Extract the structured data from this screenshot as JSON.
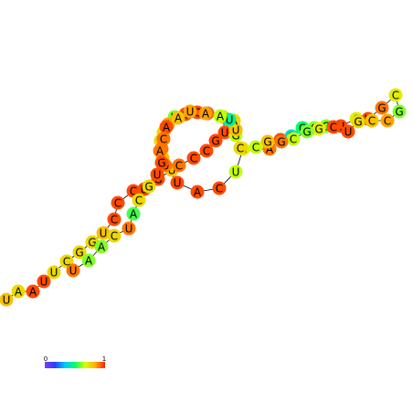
{
  "structure": {
    "nucleotides": [
      {
        "base": "U",
        "score": 0.8
      },
      {
        "base": "A",
        "score": 0.75
      },
      {
        "base": "A",
        "score": 0.95
      },
      {
        "base": "U",
        "score": 0.95
      },
      {
        "base": "U",
        "score": 0.75
      },
      {
        "base": "C",
        "score": 0.75
      },
      {
        "base": "G",
        "score": 0.75
      },
      {
        "base": "G",
        "score": 0.75
      },
      {
        "base": "U",
        "score": 0.8
      },
      {
        "base": "C",
        "score": 0.95
      },
      {
        "base": "C",
        "score": 0.95
      },
      {
        "base": "C",
        "score": 0.95
      },
      {
        "base": "U",
        "score": 0.95
      },
      {
        "base": "G",
        "score": 0.95
      },
      {
        "base": "U",
        "score": 0.8
      },
      {
        "base": "C",
        "score": 0.9
      },
      {
        "base": "C",
        "score": 0.95
      },
      {
        "base": "C",
        "score": 0.95
      },
      {
        "base": "G",
        "score": 0.95
      },
      {
        "base": "U",
        "score": 0.95
      },
      {
        "base": "U",
        "score": 0.8
      },
      {
        "base": "G",
        "score": 0.95
      },
      {
        "base": "C",
        "score": 0.95
      },
      {
        "base": "G",
        "score": 0.95
      },
      {
        "base": "U",
        "score": 0.6
      },
      {
        "base": "A",
        "score": 0.85
      },
      {
        "base": "A",
        "score": 0.75
      },
      {
        "base": "A",
        "score": 0.75
      },
      {
        "base": "G",
        "score": 0.9
      },
      {
        "base": "A",
        "score": 0.8
      },
      {
        "base": "U",
        "score": 0.9
      },
      {
        "base": "U",
        "score": 0.95
      },
      {
        "base": "A",
        "score": 0.95
      },
      {
        "base": "C",
        "score": 0.95
      },
      {
        "base": "U",
        "score": 0.65
      },
      {
        "base": "G",
        "score": 0.7
      },
      {
        "base": "A",
        "score": 0.9
      },
      {
        "base": "U",
        "score": 0.95
      },
      {
        "base": "G",
        "score": 0.4
      },
      {
        "base": "C",
        "score": 0.5
      },
      {
        "base": "C",
        "score": 0.6
      },
      {
        "base": "G",
        "score": 0.6
      },
      {
        "base": "U",
        "score": 0.95
      },
      {
        "base": "C",
        "score": 0.7
      },
      {
        "base": "U",
        "score": 0.95
      },
      {
        "base": "G",
        "score": 0.9
      },
      {
        "base": "C",
        "score": 0.7
      },
      {
        "base": "G",
        "score": 0.6
      },
      {
        "base": "C",
        "score": 0.85
      },
      {
        "base": "C",
        "score": 0.8
      },
      {
        "base": "G",
        "score": 0.75
      },
      {
        "base": "U",
        "score": 0.95
      },
      {
        "base": "C",
        "score": 0.95
      },
      {
        "base": "G",
        "score": 0.7
      },
      {
        "base": "G",
        "score": 0.6
      },
      {
        "base": "C",
        "score": 0.65
      },
      {
        "base": "G",
        "score": 0.9
      },
      {
        "base": "G",
        "score": 0.8
      },
      {
        "base": "C",
        "score": 0.65
      },
      {
        "base": "C",
        "score": 0.75
      },
      {
        "base": "G",
        "score": 0.65
      },
      {
        "base": "U",
        "score": 0.8
      },
      {
        "base": "A",
        "score": 0.75
      },
      {
        "base": "U",
        "score": 0.45
      },
      {
        "base": "A",
        "score": 0.65
      },
      {
        "base": "A",
        "score": 0.85
      },
      {
        "base": "U",
        "score": 0.85
      },
      {
        "base": "A",
        "score": 0.8
      },
      {
        "base": "A",
        "score": 0.95
      },
      {
        "base": "C",
        "score": 0.9
      },
      {
        "base": "A",
        "score": 0.9
      },
      {
        "base": "G",
        "score": 0.95
      },
      {
        "base": "U",
        "score": 0.95
      },
      {
        "base": "G",
        "score": 0.75
      },
      {
        "base": "C",
        "score": 0.75
      },
      {
        "base": "A",
        "score": 0.55
      },
      {
        "base": "U",
        "score": 0.9
      },
      {
        "base": "C",
        "score": 0.75
      },
      {
        "base": "A",
        "score": 0.6
      },
      {
        "base": "A",
        "score": 0.6
      },
      {
        "base": "U",
        "score": 0.9
      }
    ]
  },
  "legend": {
    "min_label": "0",
    "max_label": "1",
    "colormap": [
      "#7b3ff0",
      "#2a40ff",
      "#00c8ff",
      "#00ff6a",
      "#d8ff00",
      "#ffb000",
      "#ff2000"
    ]
  }
}
